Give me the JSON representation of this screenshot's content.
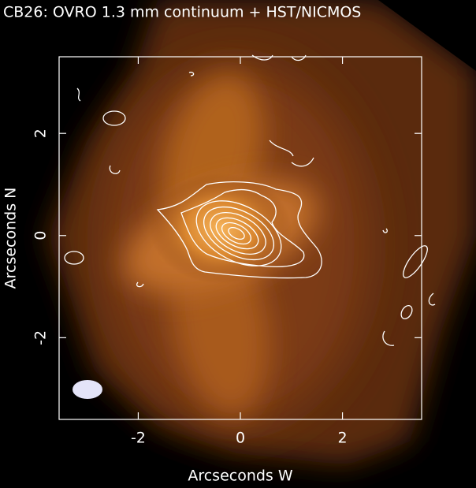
{
  "chart_data": {
    "type": "image",
    "title": "CB26:  OVRO 1.3 mm continuum + HST/NICMOS",
    "x_label": "Arcseconds W",
    "y_label": "Arcseconds N",
    "xlim": [
      -3.55,
      3.55
    ],
    "ylim": [
      -3.6,
      3.5
    ],
    "xticks": [
      -2,
      0,
      2
    ],
    "yticks": [
      -2,
      0,
      2
    ]
  }
}
